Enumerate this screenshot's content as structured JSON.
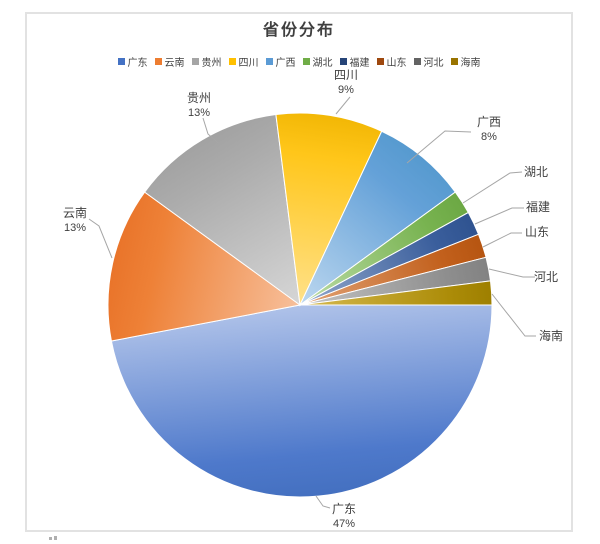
{
  "title": "省份分布",
  "chart_data": {
    "type": "pie",
    "title": "省份分布",
    "categories": [
      "广东",
      "云南",
      "贵州",
      "四川",
      "广西",
      "湖北",
      "福建",
      "山东",
      "河北",
      "海南"
    ],
    "values": [
      47,
      13,
      13,
      9,
      8,
      2,
      2,
      2,
      2,
      2
    ],
    "unit": "percent",
    "start_angle_deg": 90,
    "direction": "clockwise",
    "legend_position": "top",
    "grid": "off",
    "data_labels": [
      {
        "name": "广东",
        "pct": "47%"
      },
      {
        "name": "云南",
        "pct": "13%"
      },
      {
        "name": "贵州",
        "pct": "13%"
      },
      {
        "name": "四川",
        "pct": "9%"
      },
      {
        "name": "广西",
        "pct": "8%"
      },
      {
        "name": "湖北",
        "pct": ""
      },
      {
        "name": "福建",
        "pct": ""
      },
      {
        "name": "山东",
        "pct": ""
      },
      {
        "name": "河北",
        "pct": ""
      },
      {
        "name": "海南",
        "pct": ""
      }
    ],
    "colors": {
      "legend": [
        "#4472C4",
        "#ED7D31",
        "#A5A5A5",
        "#FFC000",
        "#5B9BD5",
        "#70AD47",
        "#264478",
        "#9E480E",
        "#636363",
        "#997300"
      ],
      "slice_light": [
        "#AFC2E9",
        "#F7C09C",
        "#D6D6D6",
        "#FFE18A",
        "#BCD7EF",
        "#BCDCA8",
        "#93A9CC",
        "#E2A477",
        "#C4C4C4",
        "#D6BA50"
      ],
      "slice_base": [
        "#4E79CB",
        "#EE8137",
        "#ACACAC",
        "#FFC61A",
        "#64A1D8",
        "#78B350",
        "#3A5E9C",
        "#C2601C",
        "#8E8E8E",
        "#AC8C08"
      ],
      "slice_rim": [
        "#4470C0",
        "#E9742A",
        "#A2A2A2",
        "#F2B705",
        "#569ACF",
        "#6CA844",
        "#2F5390",
        "#B65511",
        "#828282",
        "#9E7F00"
      ]
    }
  },
  "style_colors": {
    "text": "#404040",
    "title_text": "#3F3F3F",
    "leader_line": "#A6A6A6",
    "frame_border": "#E2E2E2",
    "background": "#FFFFFF",
    "slice_stroke": "#FFFFFF"
  }
}
